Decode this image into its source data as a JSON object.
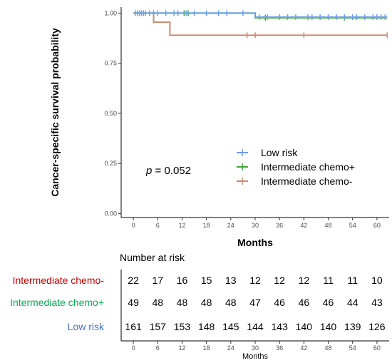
{
  "chart_data": [
    {
      "type": "line",
      "subtype": "kaplan-meier",
      "xlabel": "Months",
      "ylabel": "Cancer-specific survival probability",
      "xlim": [
        -3,
        63
      ],
      "ylim": [
        -0.02,
        1.03
      ],
      "xticks": [
        0,
        6,
        12,
        18,
        24,
        30,
        36,
        42,
        48,
        54,
        60
      ],
      "yticks": [
        0.0,
        0.25,
        0.5,
        0.75,
        1.0
      ],
      "ytick_labels": [
        "0.00",
        "0.25",
        "0.50",
        "0.75",
        "1.00"
      ],
      "grid": false,
      "legend_position": "center-right",
      "annotation": {
        "prefix": "p",
        "text": " = 0.052"
      },
      "series": [
        {
          "name": "Low risk",
          "color": "#6d9eeb",
          "steps": [
            [
              0,
              1.0
            ],
            [
              30,
              0.98
            ],
            [
              62.5,
              0.98
            ]
          ],
          "censored": [
            0.5,
            1,
            1.5,
            2,
            2.5,
            3,
            4,
            5,
            6,
            8,
            10,
            11,
            13,
            15,
            18,
            21,
            23,
            27,
            31,
            33,
            36,
            38,
            40,
            43,
            44,
            46,
            48,
            50,
            52,
            54,
            55,
            57,
            59,
            60,
            61,
            62
          ]
        },
        {
          "name": "Intermediate chemo+",
          "color": "#3aa335",
          "steps": [
            [
              0,
              1.0
            ],
            [
              30,
              0.977
            ],
            [
              62.5,
              0.977
            ]
          ],
          "censored": [
            12.5,
            13.5,
            32.5,
            52
          ]
        },
        {
          "name": "Intermediate chemo-",
          "color": "#c98a6f",
          "steps": [
            [
              0,
              1.0
            ],
            [
              5,
              0.955
            ],
            [
              9,
              0.89
            ],
            [
              62.5,
              0.89
            ]
          ],
          "censored": [
            1,
            28,
            30,
            42,
            62.5
          ]
        }
      ]
    },
    {
      "type": "table",
      "title": "Number at risk",
      "xlabel": "Months",
      "xticks": [
        0,
        6,
        12,
        18,
        24,
        30,
        36,
        42,
        48,
        54,
        60
      ],
      "rows": [
        {
          "label": "Intermediate chemo-",
          "color": "#c00000",
          "values": [
            22,
            17,
            16,
            15,
            13,
            12,
            12,
            12,
            11,
            11,
            10
          ]
        },
        {
          "label": "Intermediate chemo+",
          "color": "#00b050",
          "values": [
            49,
            48,
            48,
            48,
            48,
            47,
            46,
            46,
            46,
            44,
            43
          ]
        },
        {
          "label": "Low risk",
          "color": "#4472c4",
          "values": [
            161,
            157,
            153,
            148,
            145,
            144,
            143,
            140,
            140,
            139,
            126
          ]
        }
      ]
    }
  ]
}
